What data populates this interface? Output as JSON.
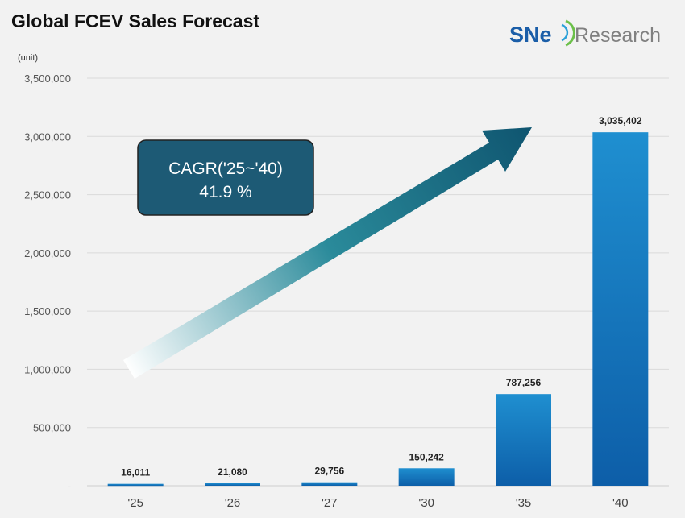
{
  "chart_data": {
    "type": "bar",
    "title": "Global FCEV Sales Forecast",
    "unit_label": "(unit)",
    "categories": [
      "'25",
      "'26",
      "'27",
      "'30",
      "'35",
      "'40"
    ],
    "values": [
      16011,
      21080,
      29756,
      150242,
      787256,
      3035402
    ],
    "data_labels": [
      "16,011",
      "21,080",
      "29,756",
      "150,242",
      "787,256",
      "3,035,402"
    ],
    "ylim": [
      0,
      3500000
    ],
    "yticks": [
      0,
      500000,
      1000000,
      1500000,
      2000000,
      2500000,
      3000000,
      3500000
    ],
    "ytick_labels": [
      "-",
      "500,000",
      "1,000,000",
      "1,500,000",
      "2,000,000",
      "2,500,000",
      "3,000,000",
      "3,500,000"
    ],
    "grid": true,
    "annotation": {
      "line1": "CAGR('25~'40)",
      "line2": "41.9 %"
    },
    "colors": {
      "bar_top": "#1f8fd0",
      "bar_bottom": "#0d5ea8",
      "arrow": "#12607a",
      "cagr_box": "#1d5a75"
    }
  },
  "logo": {
    "sne": "SNe",
    "research": "Research"
  }
}
